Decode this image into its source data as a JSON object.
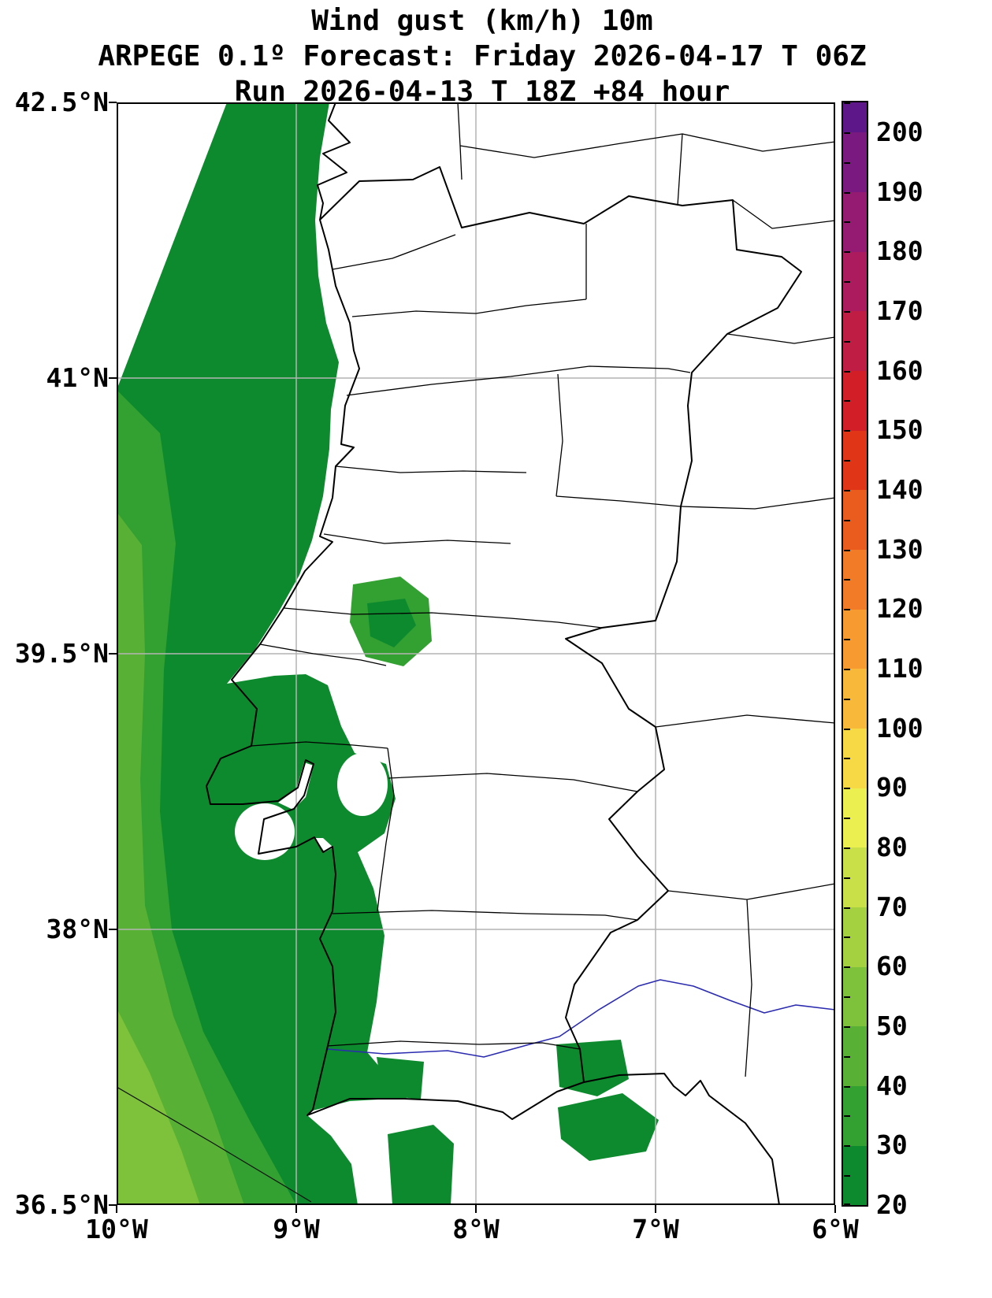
{
  "title": {
    "line1": "Wind gust (km/h) 10m",
    "line2": "ARPEGE 0.1º Forecast: Friday 2026-04-17 T 06Z",
    "line3": "Run 2026-04-13 T 18Z +84 hour"
  },
  "axes": {
    "lat_range": [
      36.5,
      42.5
    ],
    "lon_range": [
      -10,
      -6
    ],
    "lat_ticks": [
      {
        "label": "42.5°N",
        "value": 42.5
      },
      {
        "label": "41°N",
        "value": 41
      },
      {
        "label": "39.5°N",
        "value": 39.5
      },
      {
        "label": "38°N",
        "value": 38
      },
      {
        "label": "36.5°N",
        "value": 36.5
      }
    ],
    "lon_ticks": [
      {
        "label": "10°W",
        "value": -10
      },
      {
        "label": "9°W",
        "value": -9
      },
      {
        "label": "8°W",
        "value": -8
      },
      {
        "label": "7°W",
        "value": -7
      },
      {
        "label": "6°W",
        "value": -6
      }
    ]
  },
  "colorbar": {
    "min": 20,
    "max": 205,
    "minor_tick_step": 5,
    "tick_labels": [
      20,
      30,
      40,
      50,
      60,
      70,
      80,
      90,
      100,
      110,
      120,
      130,
      140,
      150,
      160,
      170,
      180,
      190,
      200
    ],
    "segments": [
      {
        "from": 20,
        "to": 30,
        "color": "#0e8a2e"
      },
      {
        "from": 30,
        "to": 40,
        "color": "#33a032"
      },
      {
        "from": 40,
        "to": 50,
        "color": "#58b135"
      },
      {
        "from": 50,
        "to": 60,
        "color": "#7ec13a"
      },
      {
        "from": 60,
        "to": 70,
        "color": "#a3d140"
      },
      {
        "from": 70,
        "to": 80,
        "color": "#c9e048"
      },
      {
        "from": 80,
        "to": 90,
        "color": "#ecef50"
      },
      {
        "from": 90,
        "to": 100,
        "color": "#f6d945"
      },
      {
        "from": 100,
        "to": 110,
        "color": "#f8b93a"
      },
      {
        "from": 110,
        "to": 120,
        "color": "#f79a30"
      },
      {
        "from": 120,
        "to": 130,
        "color": "#f17b27"
      },
      {
        "from": 130,
        "to": 140,
        "color": "#e95c1e"
      },
      {
        "from": 140,
        "to": 150,
        "color": "#e03517"
      },
      {
        "from": 150,
        "to": 160,
        "color": "#d21f27"
      },
      {
        "from": 160,
        "to": 170,
        "color": "#c01d45"
      },
      {
        "from": 170,
        "to": 180,
        "color": "#ab1b5e"
      },
      {
        "from": 180,
        "to": 190,
        "color": "#941a72"
      },
      {
        "from": 190,
        "to": 200,
        "color": "#7a1a80"
      },
      {
        "from": 200,
        "to": 205,
        "color": "#5e1788"
      }
    ]
  },
  "chart_data": {
    "type": "heatmap",
    "subtype": "filled-contour weather map",
    "title": "Wind gust (km/h) 10m",
    "model": "ARPEGE 0.1º",
    "valid_time": "Friday 2026-04-17 T 06Z",
    "run_time": "2026-04-13 T 18Z",
    "lead_hours": 84,
    "variable": "10 m wind gust",
    "unit": "km/h",
    "xlabel": "longitude",
    "ylabel": "latitude",
    "xlim": [
      -10,
      -6
    ],
    "ylim": [
      36.5,
      42.5
    ],
    "x_ticks": [
      "10°W",
      "9°W",
      "8°W",
      "7°W",
      "6°W"
    ],
    "y_ticks": [
      "36.5°N",
      "38°N",
      "39.5°N",
      "41°N",
      "42.5°N"
    ],
    "grid": true,
    "legend_position": "right colorbar",
    "colorbar_range": [
      20,
      205
    ],
    "contour_interval": 10,
    "bands_visible": [
      {
        "value_range": [
          20,
          30
        ],
        "color": "#0e8a2e",
        "region": "Atlantic nearshore waters along the whole Portuguese coast, large offshore blob in the northwest, coastal land strip from Peniche through Lisbon/Setubal down to the Algarve, inland patch near 39.6N 8.5W, scattered patches over the Algarve and Gulf of Cadiz"
      },
      {
        "value_range": [
          30,
          40
        ],
        "color": "#33a032",
        "region": "offshore Atlantic along the western edge of the domain"
      },
      {
        "value_range": [
          40,
          50
        ],
        "color": "#58b135",
        "region": "far western edge, mid and southern latitudes"
      },
      {
        "value_range": [
          50,
          60
        ],
        "color": "#7ec13a",
        "region": "extreme southwest corner of the domain"
      }
    ],
    "land_values": "interior land mostly below 20 km/h (white)"
  }
}
